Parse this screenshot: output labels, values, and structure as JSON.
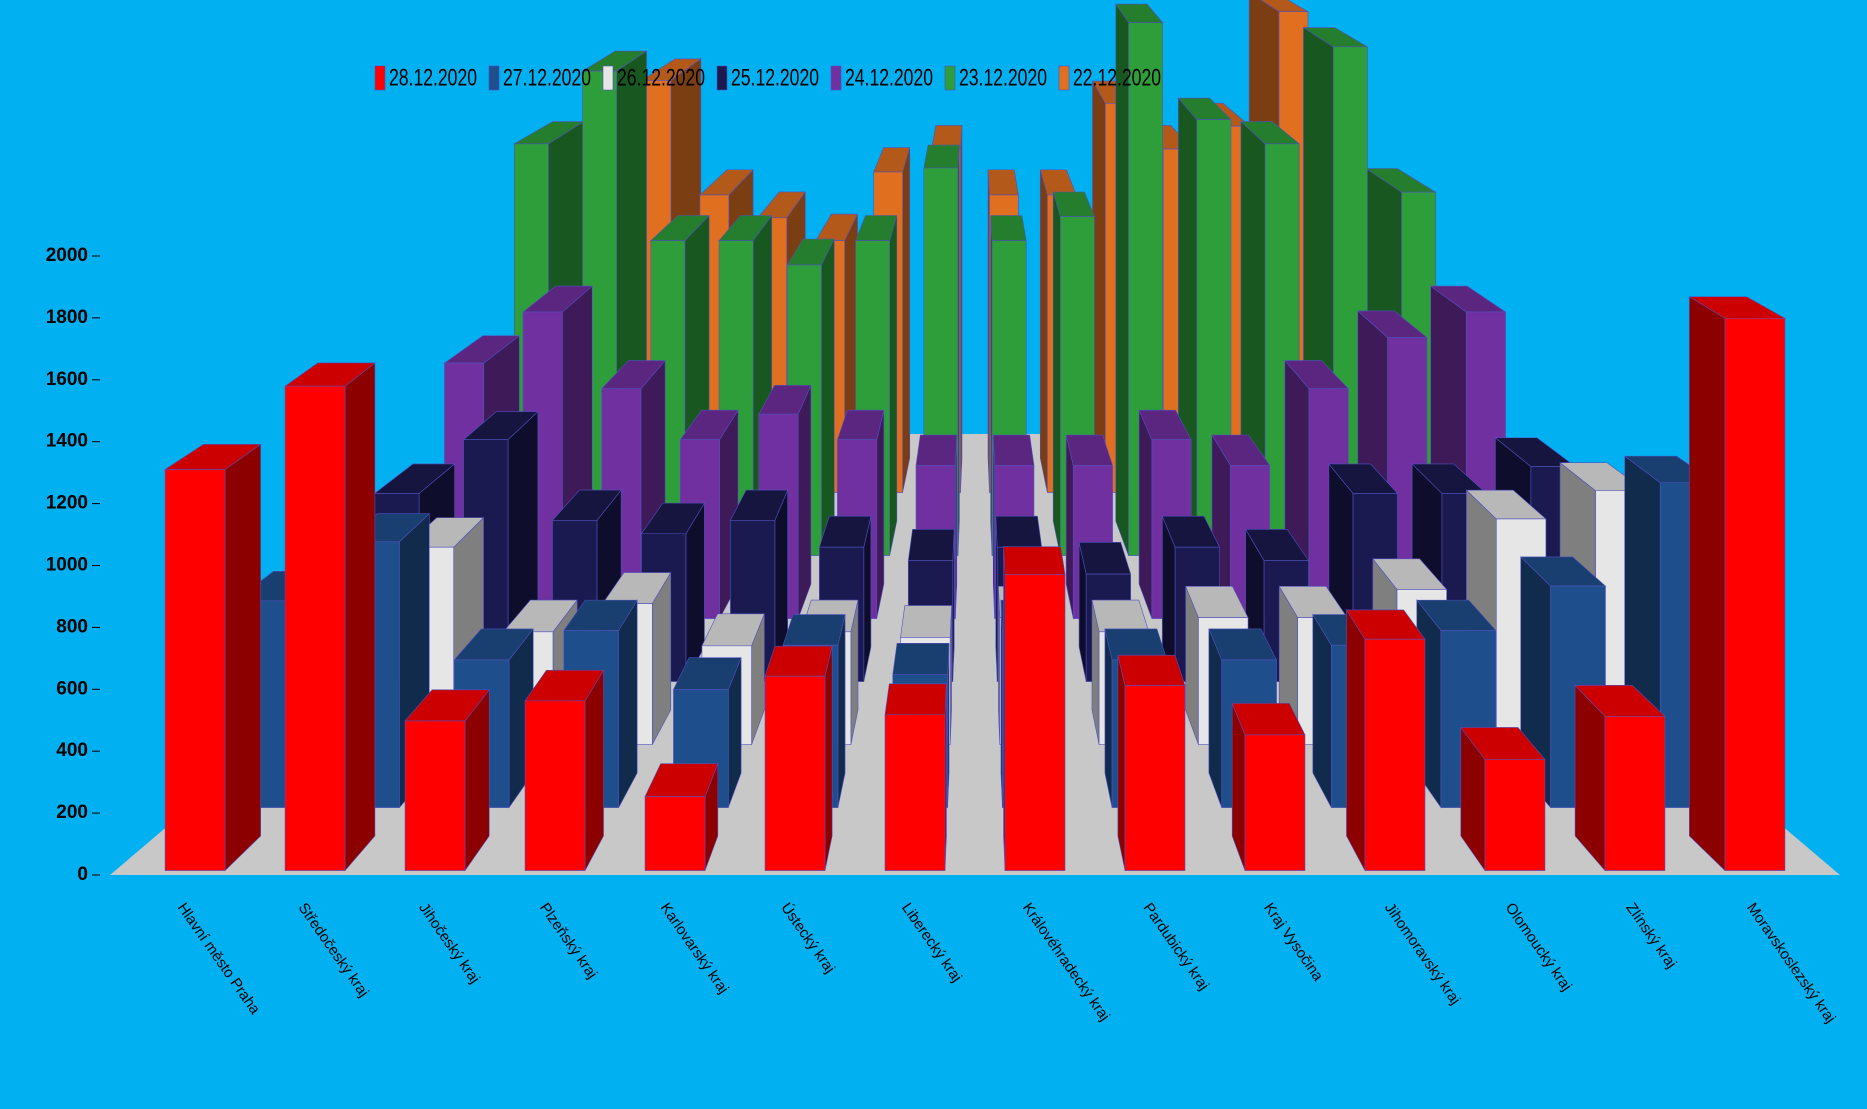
{
  "chart_data": {
    "type": "bar3d",
    "categories": [
      "Hlavní město Praha",
      "Středočeský kraj",
      "Jihočeský kraj",
      "Plzeňský kraj",
      "Karlovarský kraj",
      "Ústecký kraj",
      "Liberecký kraj",
      "Královéhradecký kraj",
      "Pardubický kraj",
      "Kraj Vysočina",
      "Jihomoravský kraj",
      "Olomoucký kraj",
      "Zlínský kraj",
      "Moravskoslezský kraj"
    ],
    "series": [
      {
        "name": "28.12.2020",
        "color": "#ff0000",
        "values": [
          1300,
          1570,
          485,
          550,
          240,
          630,
          505,
          960,
          600,
          440,
          750,
          360,
          500,
          1790
        ]
      },
      {
        "name": "27.12.2020",
        "color": "#1f4e8c",
        "values": [
          700,
          900,
          500,
          600,
          400,
          550,
          450,
          600,
          500,
          500,
          550,
          600,
          750,
          1100
        ]
      },
      {
        "name": "26.12.2020",
        "color": "#e6e6e6",
        "values": [
          500,
          700,
          400,
          500,
          350,
          400,
          380,
          450,
          400,
          450,
          450,
          550,
          800,
          900
        ]
      },
      {
        "name": "25.12.2020",
        "color": "#1a1a50",
        "values": [
          700,
          900,
          600,
          550,
          600,
          500,
          450,
          500,
          400,
          500,
          450,
          700,
          700,
          800
        ]
      },
      {
        "name": "24.12.2020",
        "color": "#7030a0",
        "values": [
          1000,
          1200,
          900,
          700,
          800,
          700,
          600,
          600,
          600,
          700,
          600,
          900,
          1100,
          1200
        ]
      },
      {
        "name": "23.12.2020",
        "color": "#2e9e3a",
        "values": [
          1700,
          2000,
          1300,
          1300,
          1200,
          1300,
          1600,
          1300,
          1400,
          2200,
          1800,
          1700,
          2100,
          1500
        ]
      },
      {
        "name": "22.12.2020",
        "color": "#e07020",
        "values": [
          1500,
          1800,
          1300,
          1200,
          1100,
          1400,
          1500,
          1300,
          1300,
          1700,
          1500,
          1600,
          2100,
          1400
        ]
      }
    ],
    "ylim": [
      0,
      2000
    ],
    "yticks": [
      0,
      200,
      400,
      600,
      800,
      1000,
      1200,
      1400,
      1600,
      1800,
      2000
    ]
  }
}
